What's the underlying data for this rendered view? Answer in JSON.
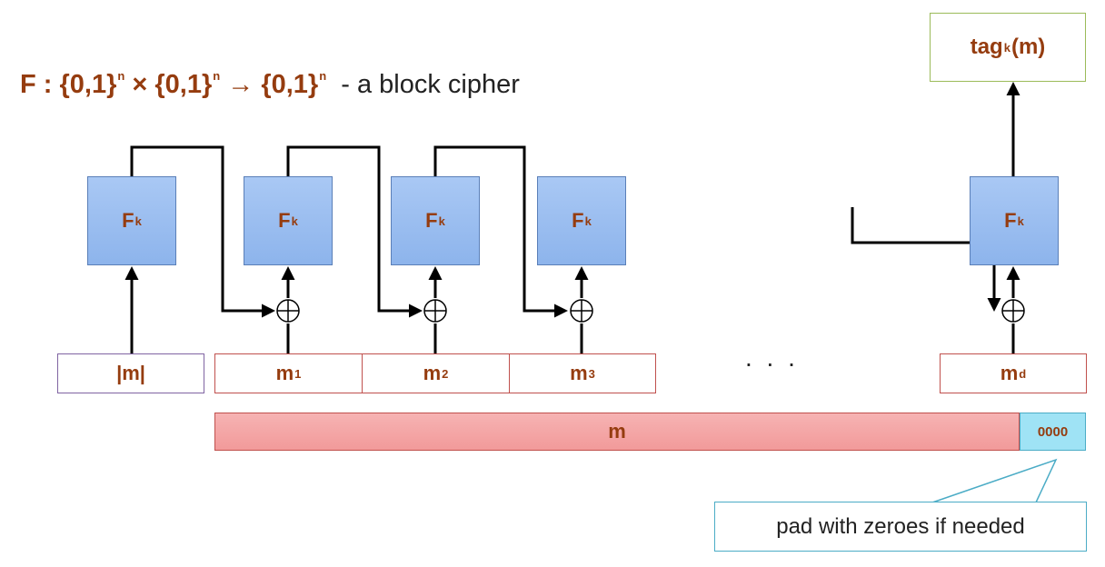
{
  "title": {
    "math": "F : {0,1}",
    "sup": "n",
    "times": " × {0,1}",
    "arrow": " → {0,1}",
    "description": "- a block cipher"
  },
  "cipher_label": "F",
  "cipher_sub": "k",
  "length_block": "|m|",
  "blocks": [
    {
      "label": "m",
      "sub": "1"
    },
    {
      "label": "m",
      "sub": "2"
    },
    {
      "label": "m",
      "sub": "3"
    },
    {
      "label": "m",
      "sub": "d"
    }
  ],
  "ellipsis": ". . .",
  "message_bar": "m",
  "padding": "0000",
  "tag": {
    "prefix": "tag",
    "sub": "k",
    "suffix": "(m)"
  },
  "callout": "pad with zeroes if needed",
  "colors": {
    "cipher_box": "#8db4ec",
    "block_border": "#c0504d",
    "message_bar": "#f29a9a",
    "padding": "#9fe3f5",
    "text_accent": "#953c0f"
  }
}
